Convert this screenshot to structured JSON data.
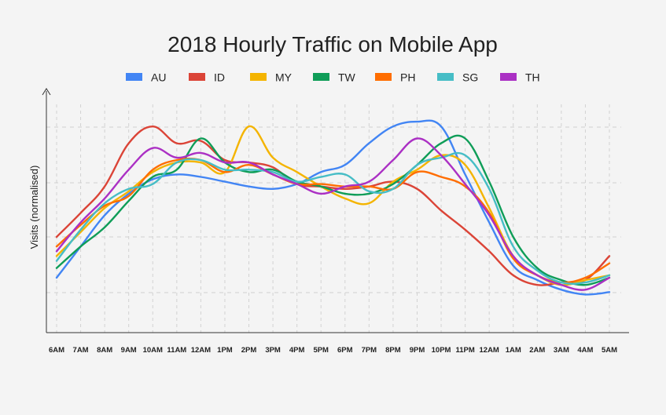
{
  "chart_data": {
    "type": "line",
    "title": "2018 Hourly Traffic on Mobile App",
    "xlabel": "",
    "ylabel": "Visits (normalised)",
    "ylim": [
      0,
      100
    ],
    "grid": true,
    "legend_position": "top",
    "categories": [
      "6AM",
      "7AM",
      "8AM",
      "9AM",
      "10AM",
      "11AM",
      "12AM",
      "1PM",
      "2PM",
      "3PM",
      "4PM",
      "5PM",
      "6PM",
      "7PM",
      "8PM",
      "9PM",
      "10PM",
      "11PM",
      "12AM",
      "1AM",
      "2AM",
      "3AM",
      "4AM",
      "5AM"
    ],
    "series": [
      {
        "name": "AU",
        "color": "#4285f4",
        "values": [
          17,
          30,
          43,
          52,
          58,
          60,
          59,
          57,
          55,
          54,
          56,
          61,
          64,
          73,
          80,
          82,
          80,
          60,
          40,
          22,
          16,
          12,
          10,
          11
        ]
      },
      {
        "name": "ID",
        "color": "#db4437",
        "values": [
          34,
          44,
          55,
          73,
          80,
          73,
          74,
          66,
          65,
          63,
          56,
          55,
          54,
          55,
          57,
          54,
          45,
          37,
          28,
          18,
          14,
          15,
          16,
          26
        ]
      },
      {
        "name": "MY",
        "color": "#f4b400",
        "values": [
          26,
          36,
          46,
          53,
          61,
          65,
          65,
          61,
          80,
          67,
          61,
          55,
          50,
          48,
          57,
          62,
          68,
          64,
          46,
          26,
          18,
          14,
          16,
          18
        ]
      },
      {
        "name": "TW",
        "color": "#0f9d58",
        "values": [
          21,
          30,
          38,
          49,
          59,
          62,
          75,
          65,
          61,
          62,
          57,
          55,
          52,
          52,
          56,
          64,
          73,
          75,
          57,
          34,
          21,
          16,
          14,
          17
        ]
      },
      {
        "name": "PH",
        "color": "#ff6d00",
        "values": [
          30,
          39,
          47,
          51,
          62,
          66,
          66,
          61,
          64,
          60,
          56,
          56,
          55,
          55,
          54,
          61,
          59,
          55,
          44,
          25,
          18,
          15,
          17,
          23
        ]
      },
      {
        "name": "SG",
        "color": "#46bdc6",
        "values": [
          24,
          37,
          48,
          54,
          56,
          65,
          66,
          62,
          62,
          61,
          57,
          59,
          60,
          53,
          54,
          64,
          67,
          68,
          54,
          30,
          20,
          15,
          15,
          18
        ]
      },
      {
        "name": "TH",
        "color": "#ab30c4",
        "values": [
          28,
          40,
          50,
          62,
          71,
          67,
          69,
          65,
          65,
          60,
          56,
          52,
          55,
          57,
          66,
          75,
          68,
          56,
          43,
          26,
          18,
          14,
          12,
          17
        ]
      }
    ]
  }
}
